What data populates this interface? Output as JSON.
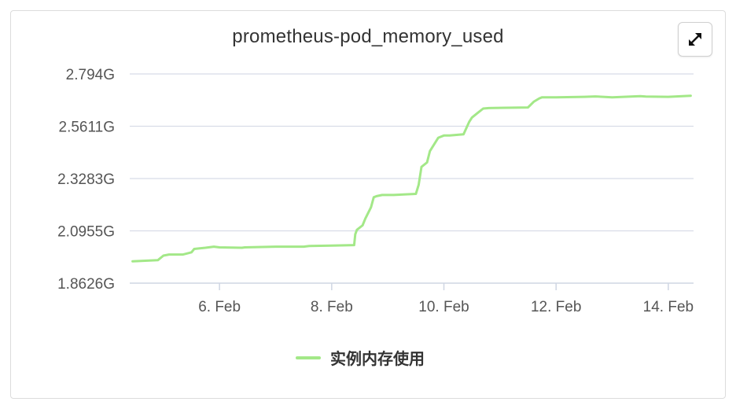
{
  "chart_data": {
    "type": "line",
    "title": "prometheus-pod_memory_used",
    "xlabel": "",
    "ylabel": "",
    "x_unit": "date (Feb)",
    "xlim": [
      4.4,
      14.45
    ],
    "ylim": [
      1.8626,
      2.794
    ],
    "y_ticks": [
      "1.8626G",
      "2.0955G",
      "2.3283G",
      "2.5611G",
      "2.794G"
    ],
    "y_tick_values": [
      1.8626,
      2.0955,
      2.3283,
      2.5611,
      2.794
    ],
    "x_ticks": [
      "6. Feb",
      "8. Feb",
      "10. Feb",
      "12. Feb",
      "14. Feb"
    ],
    "x_tick_values": [
      6,
      8,
      10,
      12,
      14
    ],
    "grid": true,
    "legend_position": "bottom-center",
    "series": [
      {
        "name": "实例内存使用",
        "color": "#a3e888",
        "x": [
          4.45,
          4.9,
          5.0,
          5.1,
          5.35,
          5.5,
          5.55,
          5.75,
          5.9,
          6.0,
          6.4,
          6.45,
          7.0,
          7.5,
          7.6,
          8.0,
          8.4,
          8.42,
          8.45,
          8.55,
          8.6,
          8.7,
          8.75,
          8.8,
          8.9,
          9.0,
          9.1,
          9.5,
          9.55,
          9.6,
          9.7,
          9.75,
          9.85,
          9.9,
          10.0,
          10.1,
          10.35,
          10.45,
          10.5,
          10.6,
          10.7,
          10.8,
          11.5,
          11.6,
          11.7,
          11.75,
          11.85,
          12.0,
          12.5,
          12.7,
          13.0,
          13.5,
          13.6,
          14.0,
          14.4
        ],
        "y": [
          1.96,
          1.965,
          1.985,
          1.99,
          1.99,
          2.0,
          2.015,
          2.02,
          2.025,
          2.022,
          2.02,
          2.022,
          2.025,
          2.025,
          2.028,
          2.03,
          2.032,
          2.08,
          2.1,
          2.12,
          2.15,
          2.2,
          2.245,
          2.25,
          2.255,
          2.255,
          2.255,
          2.26,
          2.3,
          2.38,
          2.4,
          2.45,
          2.49,
          2.51,
          2.52,
          2.52,
          2.525,
          2.58,
          2.6,
          2.62,
          2.64,
          2.642,
          2.645,
          2.67,
          2.685,
          2.69,
          2.69,
          2.69,
          2.692,
          2.694,
          2.69,
          2.695,
          2.693,
          2.692,
          2.697
        ]
      }
    ]
  }
}
